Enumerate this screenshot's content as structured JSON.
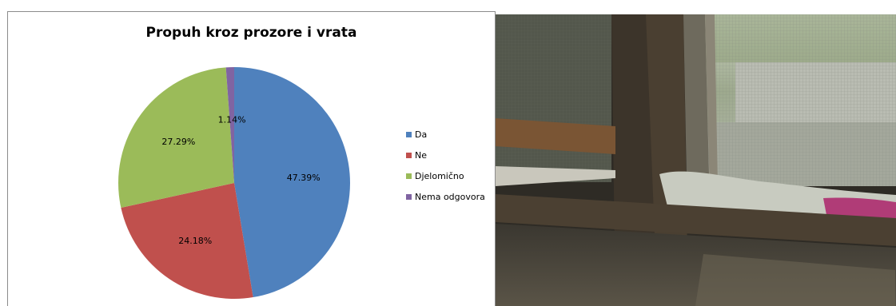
{
  "chart_data": {
    "type": "pie",
    "title": "Propuh kroz prozore i vrata",
    "slices": [
      {
        "name": "Da",
        "value": 47.39,
        "label": "47.39%",
        "color": "#4f81bd"
      },
      {
        "name": "Ne",
        "value": 24.18,
        "label": "24.18%",
        "color": "#c0504d"
      },
      {
        "name": "Djelomično",
        "value": 27.29,
        "label": "27.29%",
        "color": "#9bbb59"
      },
      {
        "name": "Nema odgovora",
        "value": 1.14,
        "label": "1.14%",
        "color": "#8064a2"
      }
    ],
    "legend_position": "right"
  },
  "photo": {
    "subject": "old wooden window frame with mesh screen and cloth stuffed in the gaps"
  }
}
